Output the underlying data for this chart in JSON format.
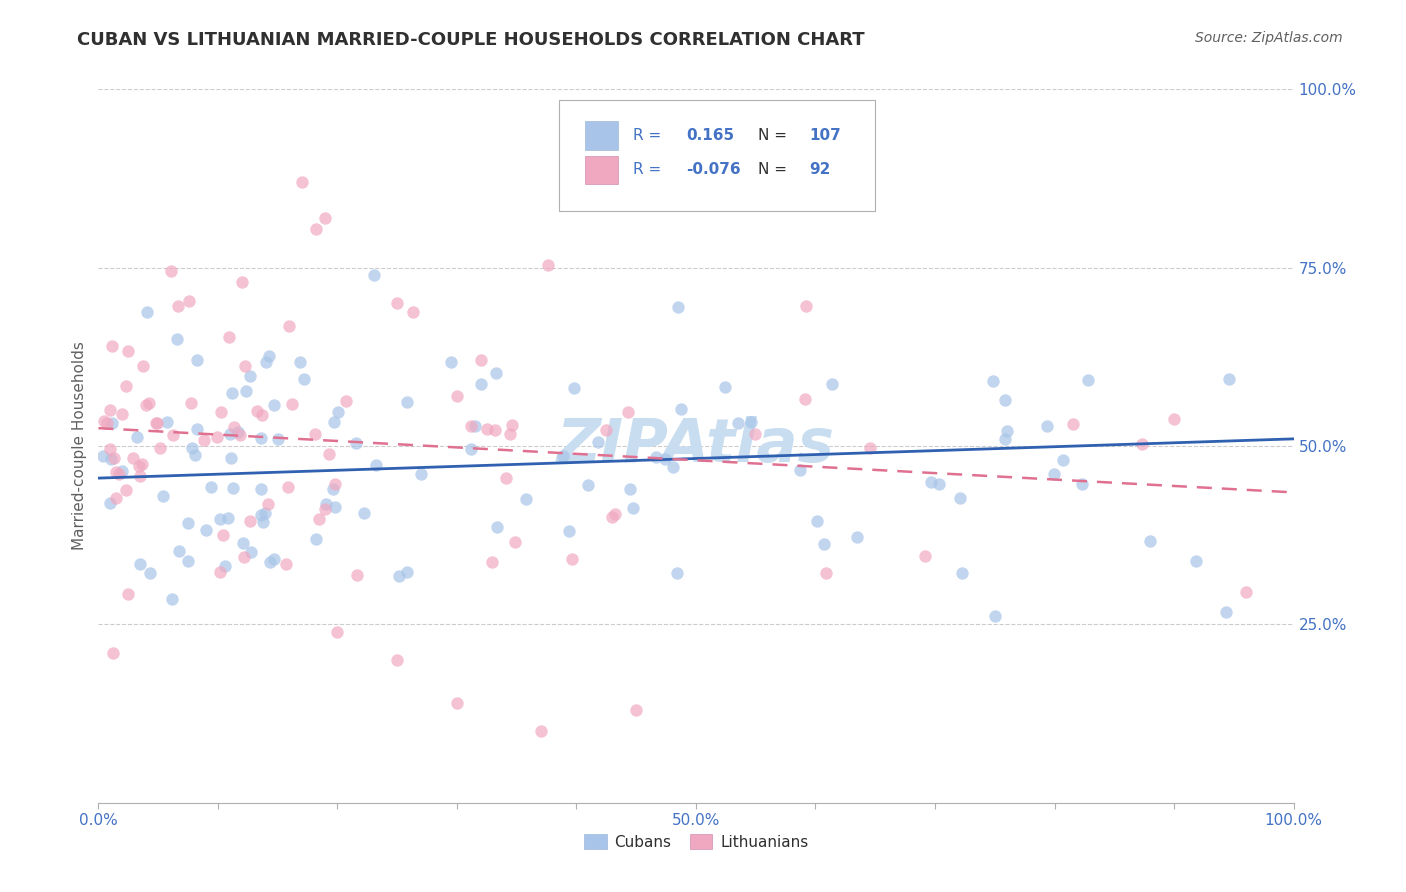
{
  "title": "CUBAN VS LITHUANIAN MARRIED-COUPLE HOUSEHOLDS CORRELATION CHART",
  "source": "Source: ZipAtlas.com",
  "ylabel": "Married-couple Households",
  "xlim": [
    0.0,
    1.0
  ],
  "ylim": [
    0.0,
    1.0
  ],
  "blue_R": "0.165",
  "blue_N": "107",
  "pink_R": "-0.076",
  "pink_N": "92",
  "blue_color": "#a8c4e8",
  "pink_color": "#f0a8c0",
  "blue_line_color": "#3060b0",
  "pink_line_color": "#e07090",
  "title_color": "#303030",
  "axis_color": "#4472c4",
  "label_color": "#606060",
  "grid_color": "#cccccc",
  "background_color": "#ffffff",
  "blue_trend_x0": 0.0,
  "blue_trend_y0": 0.455,
  "blue_trend_x1": 1.0,
  "blue_trend_y1": 0.51,
  "pink_trend_x0": 0.0,
  "pink_trend_y0": 0.525,
  "pink_trend_x1": 1.0,
  "pink_trend_y1": 0.435,
  "watermark_color": "#c8ddf0"
}
